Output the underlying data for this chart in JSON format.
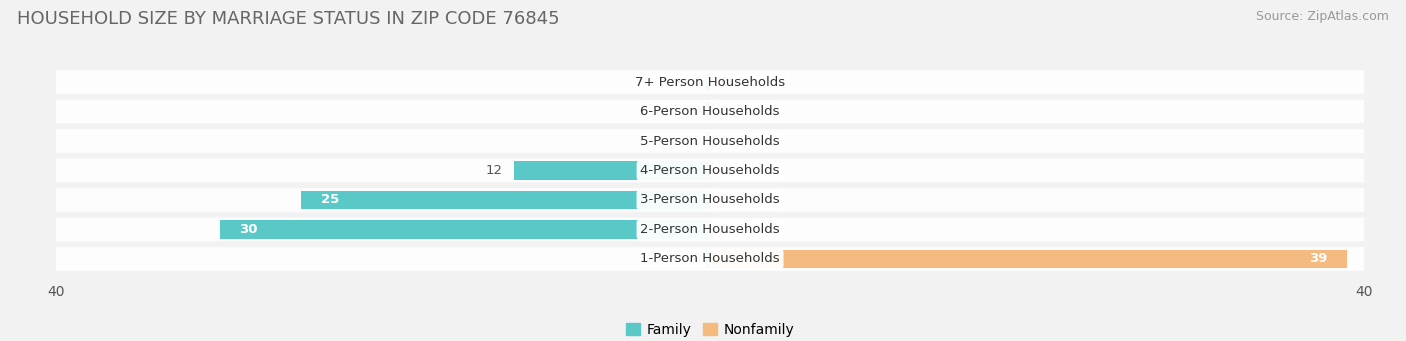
{
  "title": "Household Size by Marriage Status in Zip Code 76845",
  "source": "Source: ZipAtlas.com",
  "categories": [
    "7+ Person Households",
    "6-Person Households",
    "5-Person Households",
    "4-Person Households",
    "3-Person Households",
    "2-Person Households",
    "1-Person Households"
  ],
  "family_values": [
    0,
    0,
    0,
    12,
    25,
    30,
    0
  ],
  "nonfamily_values": [
    0,
    0,
    0,
    0,
    0,
    0,
    39
  ],
  "family_color": "#5BC8C8",
  "nonfamily_color": "#F5BA80",
  "xlim": 40,
  "background_color": "#f2f2f2",
  "title_fontsize": 13,
  "label_fontsize": 9.5,
  "tick_fontsize": 10,
  "source_fontsize": 9
}
